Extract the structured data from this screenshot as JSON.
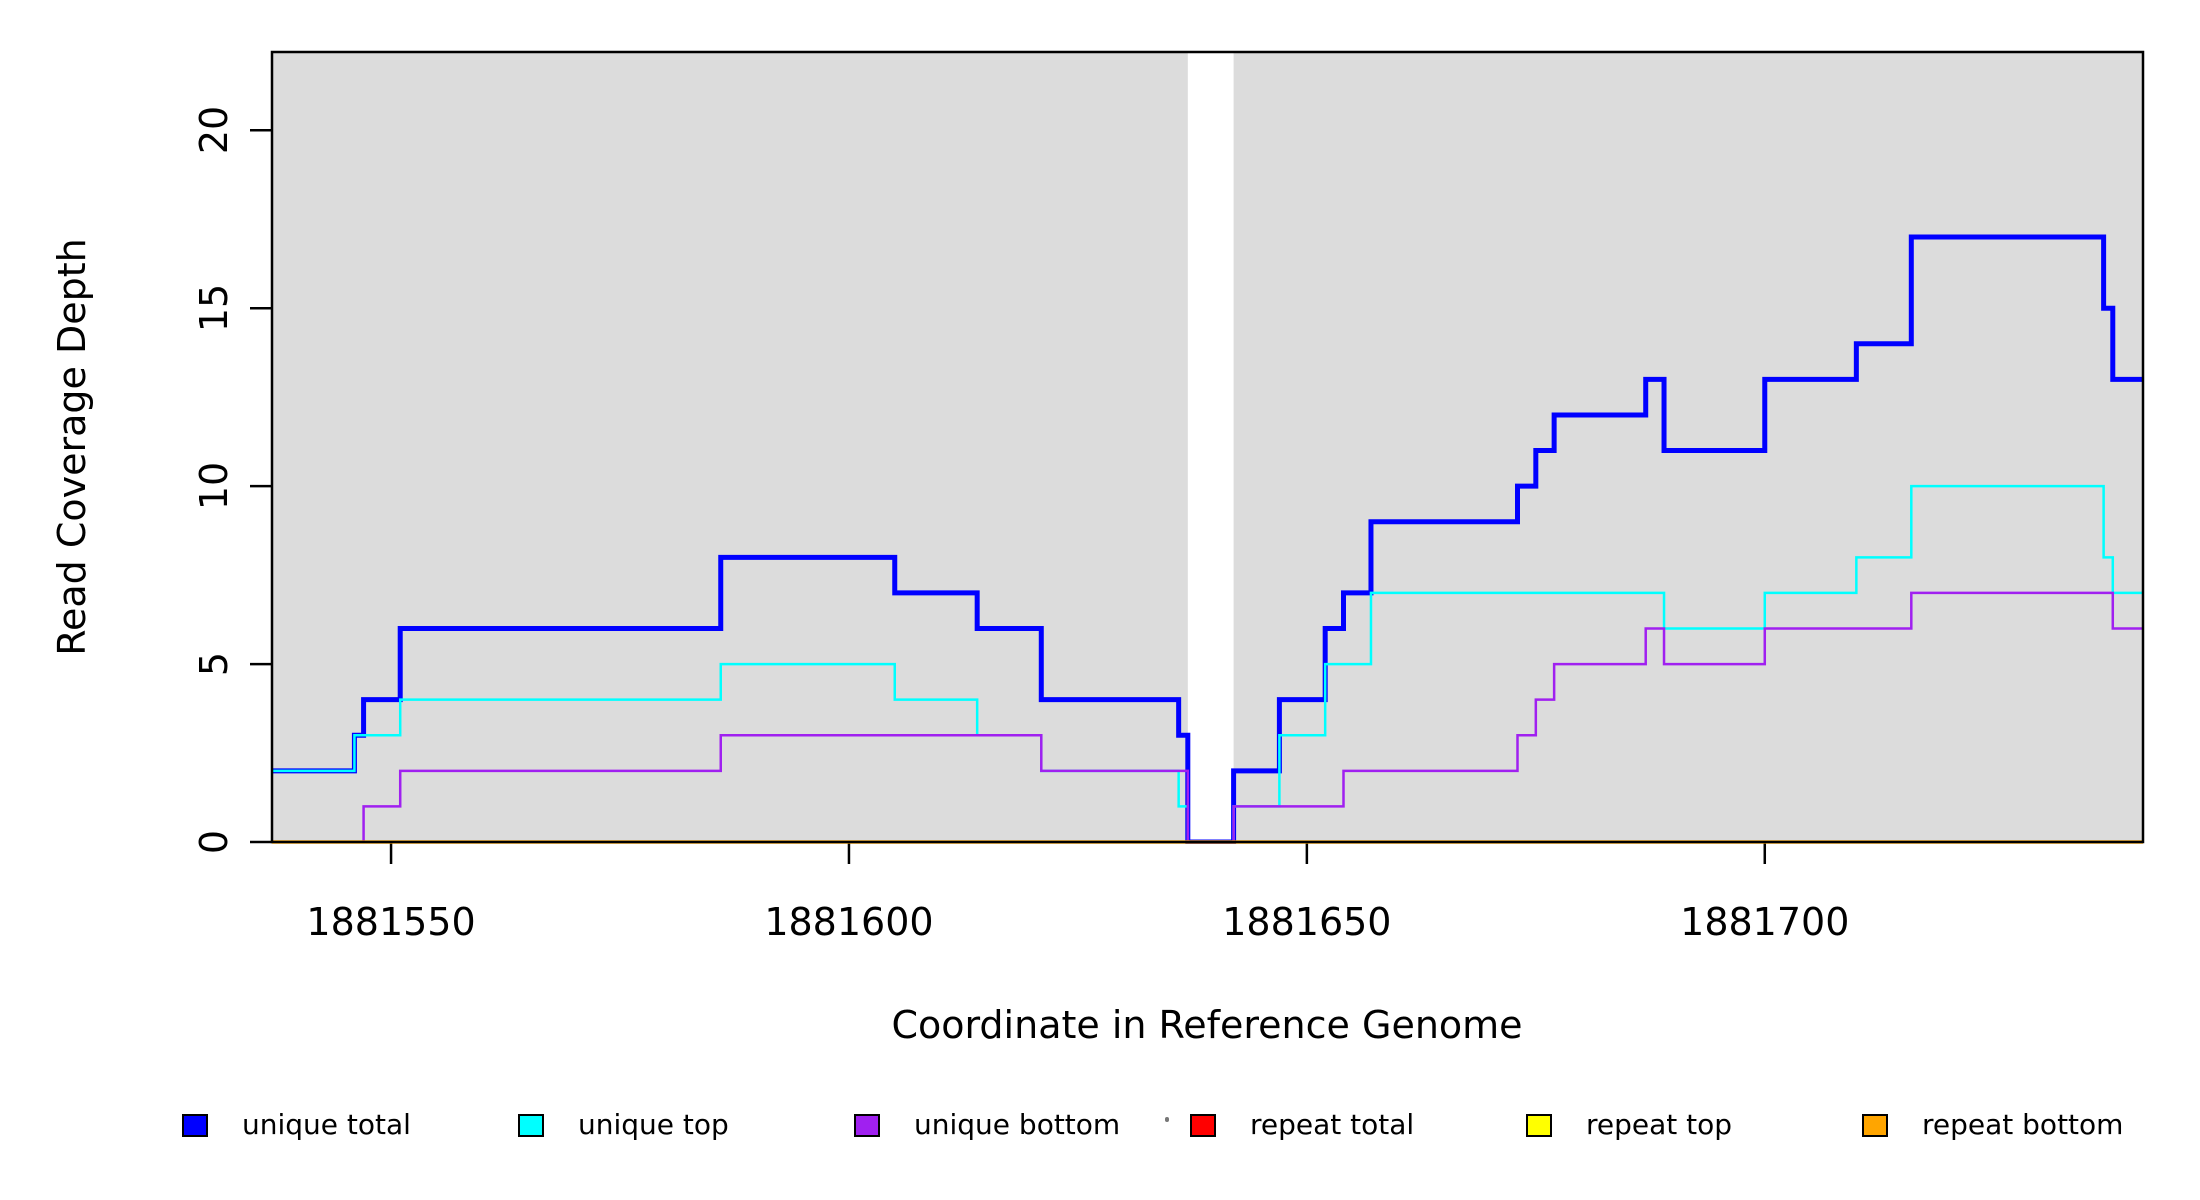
{
  "chart_data": {
    "type": "line",
    "subtype": "step-after-coverage",
    "title": "",
    "xlabel": "Coordinate in Reference Genome",
    "ylabel": "Read Coverage Depth",
    "x_ticks": [
      1881550,
      1881600,
      1881650,
      1881700
    ],
    "y_ticks": [
      0,
      5,
      10,
      15,
      20
    ],
    "xlim": [
      1881537,
      1881741.3
    ],
    "ylim": [
      0,
      22.2
    ],
    "grid": false,
    "legend_position": "bottom-horizontal",
    "plot_background": "#ffffff",
    "frame_color": "#000000",
    "background_bands": {
      "color": "#DCDCDC",
      "regions": [
        [
          1881537,
          1881637
        ],
        [
          1881642,
          1881741.3
        ]
      ]
    },
    "series": [
      {
        "name": "unique total",
        "color": "#0000FF",
        "width": 5,
        "steps": [
          [
            1881537,
            2
          ],
          [
            1881546,
            3
          ],
          [
            1881547,
            4
          ],
          [
            1881551,
            6
          ],
          [
            1881586,
            8
          ],
          [
            1881605,
            7
          ],
          [
            1881614,
            6
          ],
          [
            1881621,
            4
          ],
          [
            1881636,
            3
          ],
          [
            1881637,
            0
          ],
          [
            1881642,
            2
          ],
          [
            1881647,
            4
          ],
          [
            1881652,
            6
          ],
          [
            1881654,
            7
          ],
          [
            1881657,
            9
          ],
          [
            1881673,
            10
          ],
          [
            1881675,
            11
          ],
          [
            1881677,
            12
          ],
          [
            1881687,
            13
          ],
          [
            1881689,
            11
          ],
          [
            1881700,
            13
          ],
          [
            1881710,
            14
          ],
          [
            1881716,
            17
          ],
          [
            1881737,
            15
          ],
          [
            1881738,
            13
          ]
        ]
      },
      {
        "name": "unique top",
        "color": "#00FFFF",
        "width": 2.5,
        "steps": [
          [
            1881537,
            2
          ],
          [
            1881546,
            3
          ],
          [
            1881551,
            4
          ],
          [
            1881586,
            5
          ],
          [
            1881605,
            4
          ],
          [
            1881614,
            3
          ],
          [
            1881621,
            2
          ],
          [
            1881636,
            1
          ],
          [
            1881637,
            0
          ],
          [
            1881642,
            1
          ],
          [
            1881647,
            3
          ],
          [
            1881652,
            5
          ],
          [
            1881657,
            7
          ],
          [
            1881689,
            6
          ],
          [
            1881700,
            7
          ],
          [
            1881710,
            8
          ],
          [
            1881716,
            10
          ],
          [
            1881737,
            8
          ],
          [
            1881738,
            7
          ]
        ]
      },
      {
        "name": "unique bottom",
        "color": "#A020F0",
        "width": 2.5,
        "steps": [
          [
            1881537,
            0
          ],
          [
            1881547,
            1
          ],
          [
            1881551,
            2
          ],
          [
            1881586,
            3
          ],
          [
            1881621,
            2
          ],
          [
            1881637,
            0
          ],
          [
            1881642,
            1
          ],
          [
            1881654,
            2
          ],
          [
            1881673,
            3
          ],
          [
            1881675,
            4
          ],
          [
            1881677,
            5
          ],
          [
            1881687,
            6
          ],
          [
            1881689,
            5
          ],
          [
            1881700,
            6
          ],
          [
            1881716,
            7
          ],
          [
            1881738,
            6
          ]
        ]
      },
      {
        "name": "repeat total",
        "color": "#FF0000",
        "width": 3,
        "steps": [
          [
            1881537,
            0
          ]
        ]
      },
      {
        "name": "repeat top",
        "color": "#FFFF00",
        "width": 3,
        "steps": [
          [
            1881537,
            0
          ]
        ]
      },
      {
        "name": "repeat bottom",
        "color": "#FFA500",
        "width": 3.5,
        "steps": [
          [
            1881537,
            0
          ]
        ]
      }
    ]
  },
  "legend": {
    "items": [
      {
        "label": "unique total",
        "color": "#0000FF"
      },
      {
        "label": "unique top",
        "color": "#00FFFF"
      },
      {
        "label": "unique bottom",
        "color": "#A020F0"
      },
      {
        "label": "repeat total",
        "color": "#FF0000"
      },
      {
        "label": "repeat top",
        "color": "#FFFF00"
      },
      {
        "label": "repeat bottom",
        "color": "#FFA500"
      }
    ]
  },
  "axis_titles": {
    "x": "Coordinate in Reference Genome",
    "y": "Read Coverage Depth"
  }
}
